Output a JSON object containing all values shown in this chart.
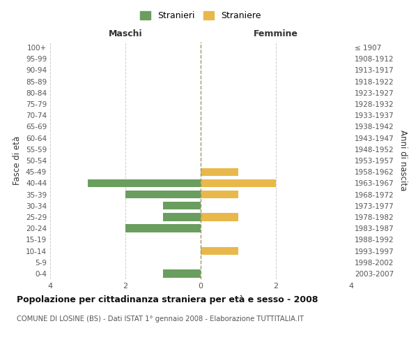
{
  "age_groups": [
    "0-4",
    "5-9",
    "10-14",
    "15-19",
    "20-24",
    "25-29",
    "30-34",
    "35-39",
    "40-44",
    "45-49",
    "50-54",
    "55-59",
    "60-64",
    "65-69",
    "70-74",
    "75-79",
    "80-84",
    "85-89",
    "90-94",
    "95-99",
    "100+"
  ],
  "birth_years": [
    "2003-2007",
    "1998-2002",
    "1993-1997",
    "1988-1992",
    "1983-1987",
    "1978-1982",
    "1973-1977",
    "1968-1972",
    "1963-1967",
    "1958-1962",
    "1953-1957",
    "1948-1952",
    "1943-1947",
    "1938-1942",
    "1933-1937",
    "1928-1932",
    "1923-1927",
    "1918-1922",
    "1913-1917",
    "1908-1912",
    "≤ 1907"
  ],
  "males": [
    -1,
    0,
    0,
    0,
    -2,
    -1,
    -1,
    -2,
    -3,
    0,
    0,
    0,
    0,
    0,
    0,
    0,
    0,
    0,
    0,
    0,
    0
  ],
  "females": [
    0,
    0,
    1,
    0,
    0,
    1,
    0,
    1,
    2,
    1,
    0,
    0,
    0,
    0,
    0,
    0,
    0,
    0,
    0,
    0,
    0
  ],
  "male_color": "#6a9e5e",
  "female_color": "#e8b84b",
  "xlim": [
    -4,
    4
  ],
  "xticks": [
    -4,
    -2,
    0,
    2,
    4
  ],
  "xtick_labels": [
    "4",
    "2",
    "0",
    "2",
    "4"
  ],
  "xlabel_left": "Maschi",
  "xlabel_right": "Femmine",
  "ylabel_left": "Fasce di età",
  "ylabel_right": "Anni di nascita",
  "title": "Popolazione per cittadinanza straniera per età e sesso - 2008",
  "subtitle": "COMUNE DI LOSINE (BS) - Dati ISTAT 1° gennaio 2008 - Elaborazione TUTTITALIA.IT",
  "legend_male": "Stranieri",
  "legend_female": "Straniere",
  "center_line_color": "#999966",
  "grid_color": "#cccccc",
  "background_color": "#ffffff",
  "bar_height": 0.7
}
